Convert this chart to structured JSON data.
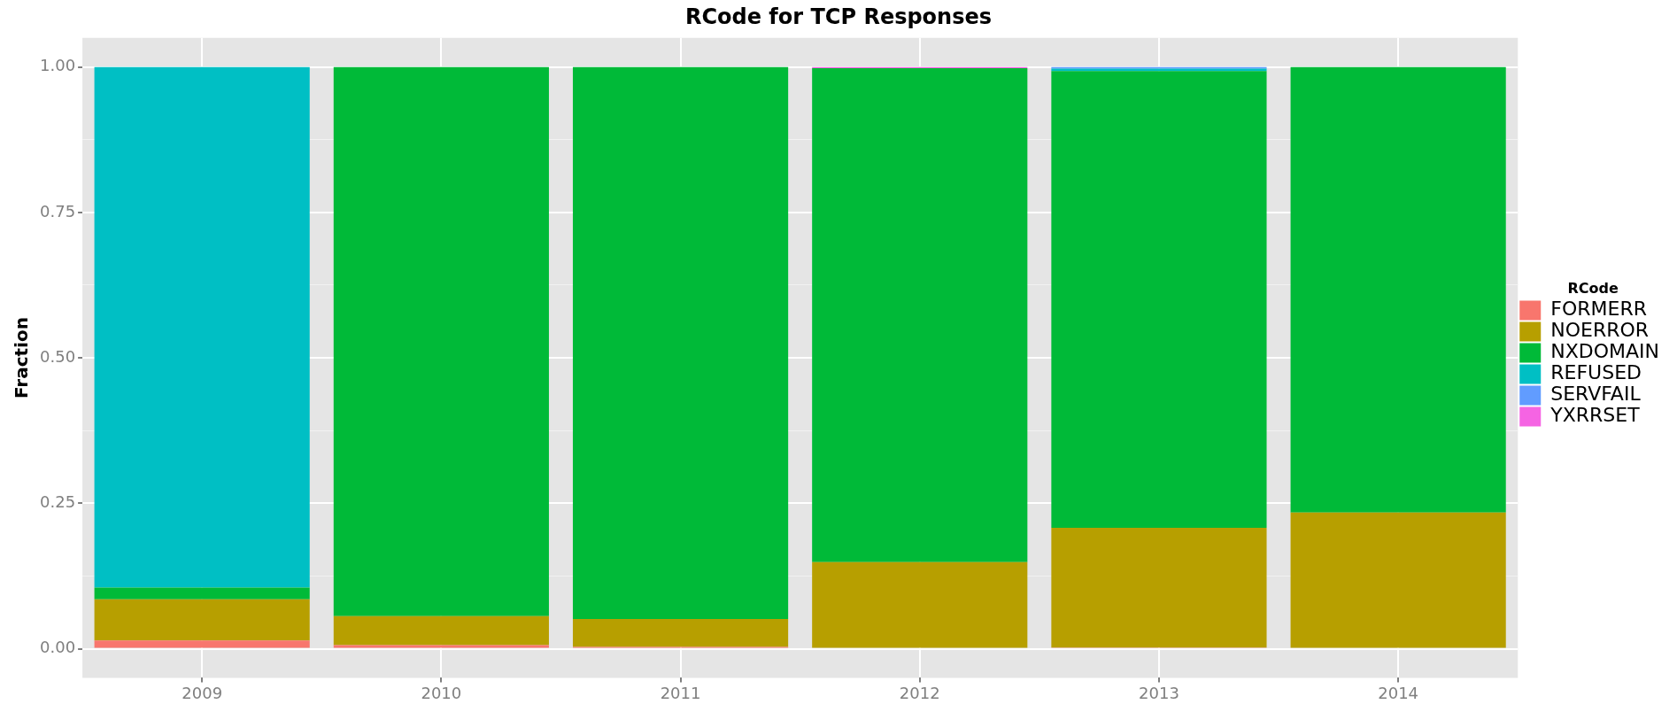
{
  "chart_data": {
    "type": "bar",
    "title": "RCode for TCP Responses",
    "ylabel": "Fraction",
    "legend_title": "RCode",
    "stacked": true,
    "categories": [
      "2009",
      "2010",
      "2011",
      "2012",
      "2013",
      "2014"
    ],
    "series": [
      {
        "name": "FORMERR",
        "color": "#f8766d",
        "values": [
          0.014,
          0.006,
          0.003,
          0,
          0.002,
          0
        ]
      },
      {
        "name": "NOERROR",
        "color": "#b79f00",
        "values": [
          0.071,
          0.05,
          0.048,
          0.149,
          0.206,
          0.234
        ]
      },
      {
        "name": "NXDOMAIN",
        "color": "#00ba38",
        "values": [
          0.02,
          0.944,
          0.949,
          0.849,
          0.785,
          0.766
        ]
      },
      {
        "name": "REFUSED",
        "color": "#00bfc4",
        "values": [
          0.895,
          0,
          0,
          0,
          0.004,
          0
        ]
      },
      {
        "name": "SERVFAIL",
        "color": "#619cff",
        "values": [
          0,
          0,
          0,
          0,
          0.003,
          0
        ]
      },
      {
        "name": "YXRRSET",
        "color": "#f564e3",
        "values": [
          0,
          0,
          0,
          0.002,
          0,
          0
        ]
      }
    ],
    "ylim": [
      -0.05,
      1.05
    ],
    "yticks": [
      {
        "value": 0,
        "label": "0.00"
      },
      {
        "value": 0.125,
        "label": null
      },
      {
        "value": 0.25,
        "label": "0.25"
      },
      {
        "value": 0.375,
        "label": null
      },
      {
        "value": 0.5,
        "label": "0.50"
      },
      {
        "value": 0.625,
        "label": null
      },
      {
        "value": 0.75,
        "label": "0.75"
      },
      {
        "value": 0.875,
        "label": null
      },
      {
        "value": 1,
        "label": "1.00"
      }
    ],
    "grid": true,
    "legend": "right"
  }
}
